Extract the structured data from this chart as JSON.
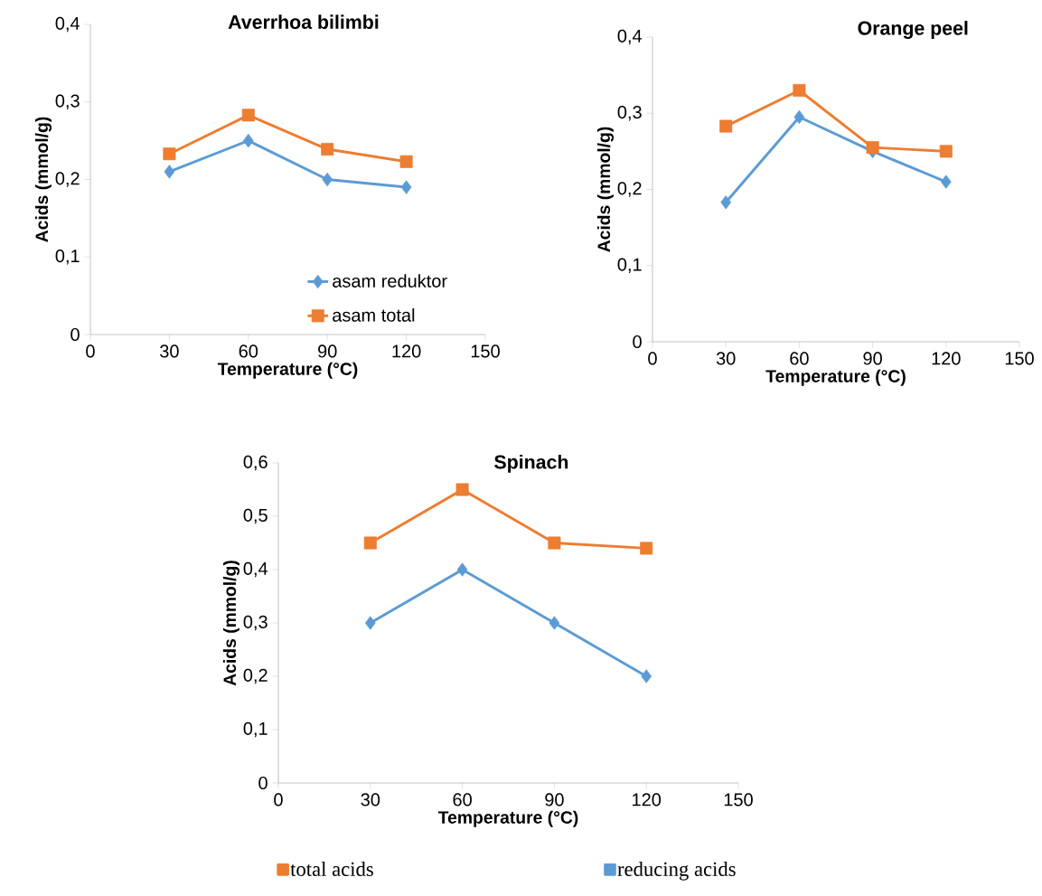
{
  "chart_data": [
    {
      "type": "line",
      "title": "Averrhoa bilimbi",
      "xlabel": "Temperature (°C)",
      "ylabel": "Acids (mmol/g)",
      "x": [
        30,
        60,
        90,
        120
      ],
      "xlim": [
        0,
        150
      ],
      "xticks": [
        0,
        30,
        60,
        90,
        120,
        150
      ],
      "ylim": [
        0,
        0.4
      ],
      "yticks": [
        0,
        {
          "value": 0.1,
          "label": "0,1"
        },
        {
          "value": 0.2,
          "label": "0,2"
        },
        {
          "value": 0.3,
          "label": "0,3"
        },
        {
          "value": 0.4,
          "label": "0,4"
        }
      ],
      "legend": "bottom right",
      "series": [
        {
          "name": "asam reduktor",
          "color": "#5b9bd5",
          "marker": "diamond",
          "values": [
            0.21,
            0.25,
            0.2,
            0.19
          ]
        },
        {
          "name": "asam total",
          "color": "#ed7d31",
          "marker": "square",
          "values": [
            0.233,
            0.283,
            0.239,
            0.223
          ]
        }
      ]
    },
    {
      "type": "line",
      "title": "Orange peel",
      "xlabel": "Temperature (°C)",
      "ylabel": "Acids (mmol/g)",
      "x": [
        30,
        60,
        90,
        120
      ],
      "xlim": [
        0,
        150
      ],
      "xticks": [
        0,
        30,
        60,
        90,
        120,
        150
      ],
      "ylim": [
        0,
        0.4
      ],
      "yticks": [
        0,
        {
          "value": 0.1,
          "label": "0,1"
        },
        {
          "value": 0.2,
          "label": "0,2"
        },
        {
          "value": 0.3,
          "label": "0,3"
        },
        {
          "value": 0.4,
          "label": "0,4"
        }
      ],
      "series": [
        {
          "color": "#5b9bd5",
          "marker": "diamond",
          "values": [
            0.183,
            0.295,
            0.25,
            0.21
          ]
        },
        {
          "color": "#ed7d31",
          "marker": "square",
          "values": [
            0.283,
            0.33,
            0.255,
            0.25
          ]
        }
      ]
    },
    {
      "type": "line",
      "title": "Spinach",
      "xlabel": "Temperature (°C)",
      "ylabel": "Acids (mmol/g)",
      "x": [
        30,
        60,
        90,
        120
      ],
      "xlim": [
        0,
        150
      ],
      "xticks": [
        0,
        30,
        60,
        90,
        120,
        150
      ],
      "ylim": [
        0,
        0.6
      ],
      "yticks": [
        0,
        {
          "value": 0.1,
          "label": "0,1"
        },
        {
          "value": 0.2,
          "label": "0,2"
        },
        {
          "value": 0.3,
          "label": "0,3"
        },
        {
          "value": 0.4,
          "label": "0,4"
        },
        {
          "value": 0.5,
          "label": "0,5"
        },
        {
          "value": 0.6,
          "label": "0,6"
        }
      ],
      "legend": "bottom",
      "series": [
        {
          "name": "total acids",
          "color": "#ed7d31",
          "marker": "square",
          "values": [
            0.45,
            0.55,
            0.45,
            0.44
          ]
        },
        {
          "name": "reducing acids",
          "color": "#5b9bd5",
          "marker": "diamond",
          "values": [
            0.3,
            0.4,
            0.3,
            0.2
          ]
        }
      ]
    }
  ]
}
